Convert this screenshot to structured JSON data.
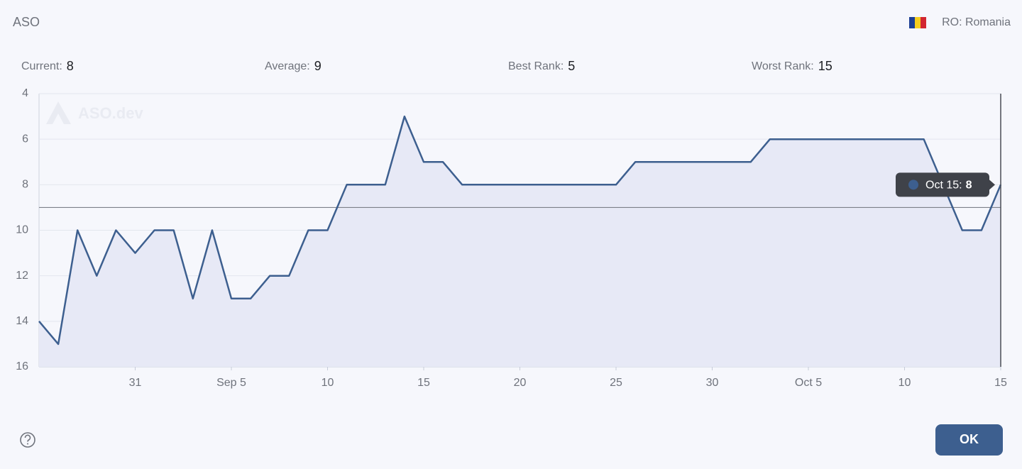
{
  "header": {
    "title": "ASO",
    "country": "RO: Romania"
  },
  "stats": [
    {
      "label": "Current:",
      "value": 8
    },
    {
      "label": "Average:",
      "value": 9
    },
    {
      "label": "Best Rank:",
      "value": 5
    },
    {
      "label": "Worst Rank:",
      "value": 15
    }
  ],
  "chart_data": {
    "type": "line",
    "watermark": "ASO.dev",
    "categories": [
      null,
      null,
      null,
      null,
      null,
      "31",
      null,
      null,
      null,
      null,
      "Sep 5",
      null,
      null,
      null,
      null,
      "10",
      null,
      null,
      null,
      null,
      "15",
      null,
      null,
      null,
      null,
      "20",
      null,
      null,
      null,
      null,
      "25",
      null,
      null,
      null,
      null,
      "30",
      null,
      null,
      null,
      null,
      "Oct 5",
      null,
      null,
      null,
      null,
      "10",
      null,
      null,
      null,
      null,
      "15"
    ],
    "values": [
      14,
      15,
      10,
      12,
      10,
      11,
      10,
      10,
      13,
      10,
      13,
      13,
      12,
      12,
      10,
      10,
      8,
      8,
      8,
      5,
      7,
      7,
      8,
      8,
      8,
      8,
      8,
      8,
      8,
      8,
      8,
      7,
      7,
      7,
      7,
      7,
      7,
      7,
      6,
      6,
      6,
      6,
      6,
      6,
      6,
      6,
      6,
      8,
      10,
      10,
      8
    ],
    "color": "#3d5f8f",
    "ylim": [
      16,
      4
    ],
    "yticks": [
      4,
      6,
      8,
      10,
      12,
      14,
      16
    ],
    "grid": true,
    "tooltip_label": "Oct 15:"
  },
  "footer": {
    "button": "OK"
  }
}
